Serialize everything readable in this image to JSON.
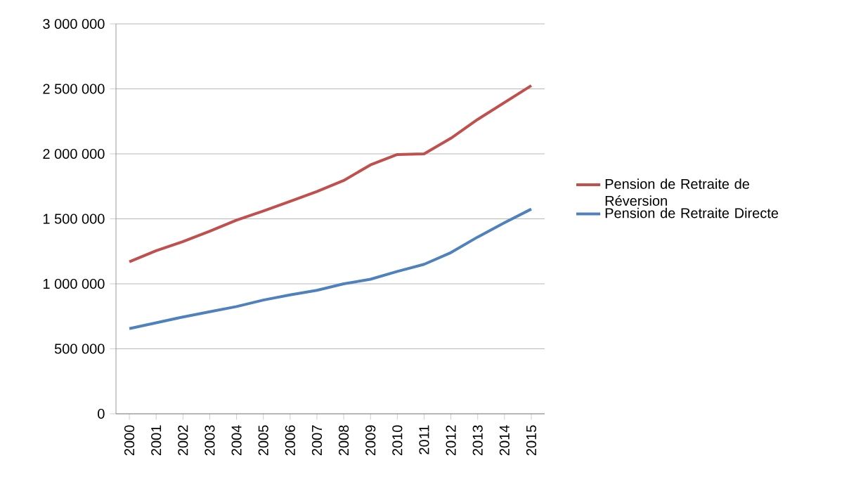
{
  "chart_data": {
    "type": "line",
    "categories": [
      "2000",
      "2001",
      "2002",
      "2003",
      "2004",
      "2005",
      "2006",
      "2007",
      "2008",
      "2009",
      "2010",
      "2011",
      "2012",
      "2013",
      "2014",
      "2015"
    ],
    "series": [
      {
        "name": "Pension de Retraite de Réversion",
        "color": "#c0504d",
        "values": [
          1170000,
          1255000,
          1325000,
          1405000,
          1490000,
          1560000,
          1635000,
          1710000,
          1795000,
          1915000,
          1995000,
          2000000,
          2120000,
          2265000,
          2395000,
          2525000
        ]
      },
      {
        "name": "Pension de Retraite Directe",
        "color": "#4f81bd",
        "values": [
          655000,
          700000,
          745000,
          785000,
          825000,
          875000,
          915000,
          950000,
          1000000,
          1035000,
          1095000,
          1150000,
          1240000,
          1360000,
          1470000,
          1575000
        ]
      }
    ],
    "ylim": [
      0,
      3000000
    ],
    "yticks": [
      0,
      {
        "value": 500000,
        "label": "500 000"
      },
      {
        "value": 1000000,
        "label": "1 000 000"
      },
      {
        "value": 1500000,
        "label": "1 500 000"
      },
      {
        "value": 2000000,
        "label": "2 000 000"
      },
      {
        "value": 2500000,
        "label": "2 500 000"
      },
      {
        "value": 3000000,
        "label": "3 000 000"
      }
    ],
    "grid": "y",
    "legend": "right",
    "marker": "none",
    "line_style": "solid"
  }
}
